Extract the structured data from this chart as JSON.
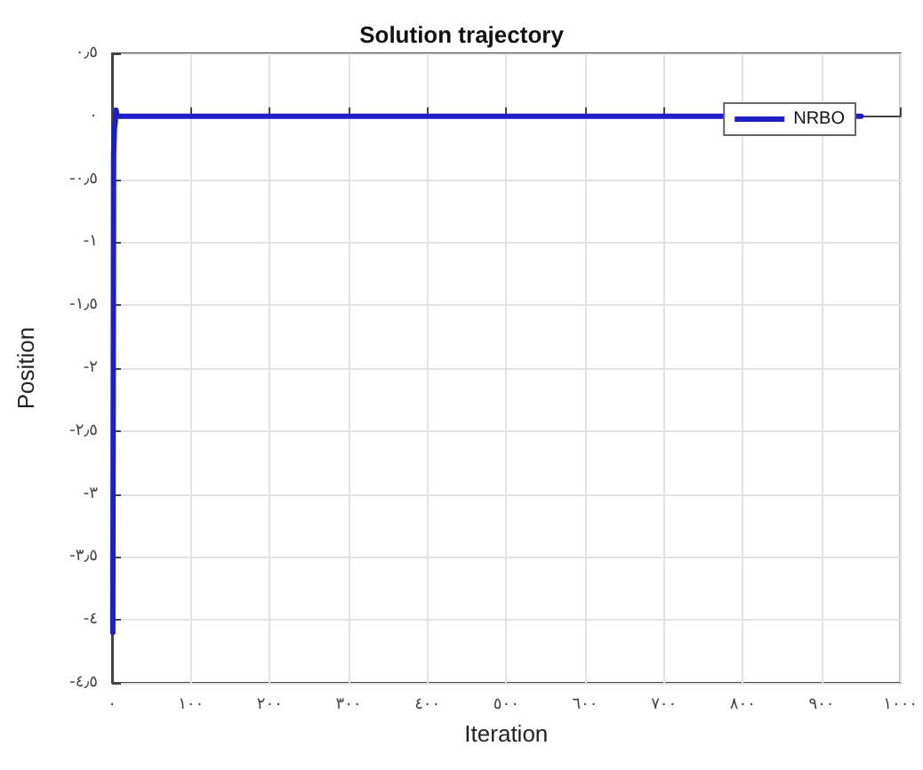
{
  "chart_data": {
    "type": "line",
    "title": "Solution trajectory",
    "xlabel": "Iteration",
    "ylabel": "Position",
    "x": [
      1,
      2,
      3,
      4,
      5,
      6,
      7,
      950
    ],
    "series": [
      {
        "name": "NRBO",
        "color": "#1f1fc8",
        "values": [
          -4.1,
          -0.3,
          -0.1,
          -0.05,
          0.05,
          0.02,
          0,
          0
        ]
      }
    ],
    "xlim": [
      0,
      1000
    ],
    "xticks": [
      {
        "value": 0,
        "label": "٠"
      },
      {
        "value": 100,
        "label": "١٠٠"
      },
      {
        "value": 200,
        "label": "٢٠٠"
      },
      {
        "value": 300,
        "label": "٣٠٠"
      },
      {
        "value": 400,
        "label": "٤٠٠"
      },
      {
        "value": 500,
        "label": "٥٠٠"
      },
      {
        "value": 600,
        "label": "٦٠٠"
      },
      {
        "value": 700,
        "label": "٧٠٠"
      },
      {
        "value": 800,
        "label": "٨٠٠"
      },
      {
        "value": 900,
        "label": "٩٠٠"
      },
      {
        "value": 1000,
        "label": "١٠٠٠"
      }
    ],
    "ylim": [
      -4.5,
      0.5
    ],
    "yticks": [
      {
        "value": -4.5,
        "label": "-٤٫٥"
      },
      {
        "value": -4,
        "label": "-٤"
      },
      {
        "value": -3.5,
        "label": "-٣٫٥"
      },
      {
        "value": -3,
        "label": "-٣"
      },
      {
        "value": -2.5,
        "label": "-٢٫٥"
      },
      {
        "value": -2,
        "label": "-٢"
      },
      {
        "value": -1.5,
        "label": "-١٫٥"
      },
      {
        "value": -1,
        "label": "-١"
      },
      {
        "value": -0.5,
        "label": "-٠٫٥"
      },
      {
        "value": 0,
        "label": "٠"
      },
      {
        "value": 0.5,
        "label": "٠٫٥"
      }
    ],
    "grid": true,
    "legend": "top right",
    "marker": "none",
    "line_style": "solid"
  }
}
